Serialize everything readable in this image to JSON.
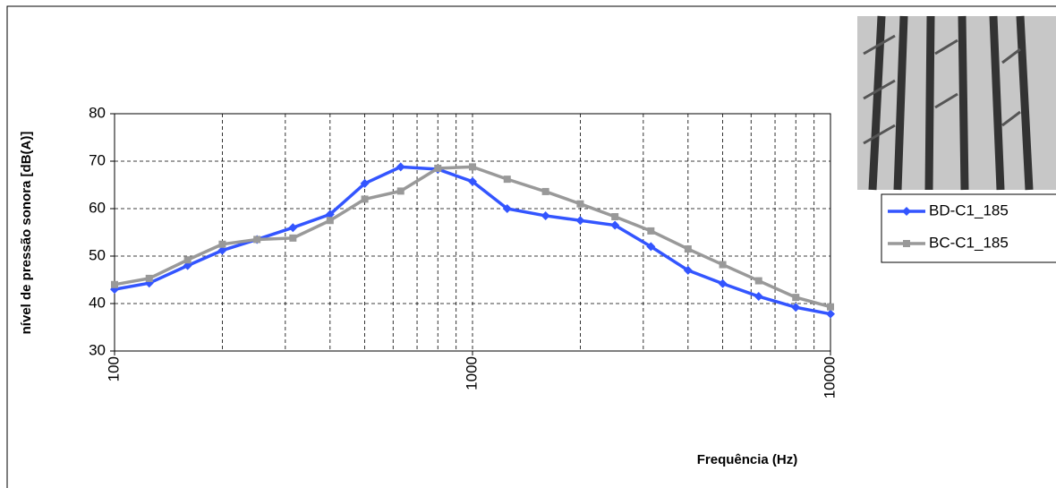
{
  "chart_data": {
    "type": "line",
    "x_label": "Frequência (Hz)",
    "y_label": "nível de pressão sonora [dB(A)]",
    "x": [
      100,
      125,
      160,
      200,
      250,
      315,
      400,
      500,
      630,
      800,
      1000,
      1250,
      1600,
      2000,
      2500,
      3150,
      4000,
      5000,
      6300,
      8000,
      10000
    ],
    "series": [
      {
        "name": "BD-C1_185",
        "color": "#3355ff",
        "marker": "diamond",
        "values": [
          43,
          44.3,
          48,
          51.2,
          53.5,
          56,
          58.8,
          65.3,
          68.8,
          68.3,
          65.7,
          60,
          58.5,
          57.5,
          56.5,
          52,
          47,
          44.2,
          41.5,
          39.2,
          37.8
        ]
      },
      {
        "name": "BC-C1_185",
        "color": "#999999",
        "marker": "square",
        "values": [
          44,
          45.3,
          49.2,
          52.5,
          53.5,
          53.8,
          57.5,
          62,
          63.7,
          68.5,
          68.8,
          66.2,
          63.6,
          61,
          58.3,
          55.3,
          51.5,
          48.2,
          44.8,
          41.3,
          39.3
        ]
      }
    ],
    "xscale": "log",
    "xlim": [
      100,
      10000
    ],
    "xticks": [
      100,
      1000,
      10000
    ],
    "ylim": [
      30,
      80
    ],
    "yticks": [
      30,
      40,
      50,
      60,
      70,
      80
    ],
    "grid": true,
    "legend": "right"
  }
}
